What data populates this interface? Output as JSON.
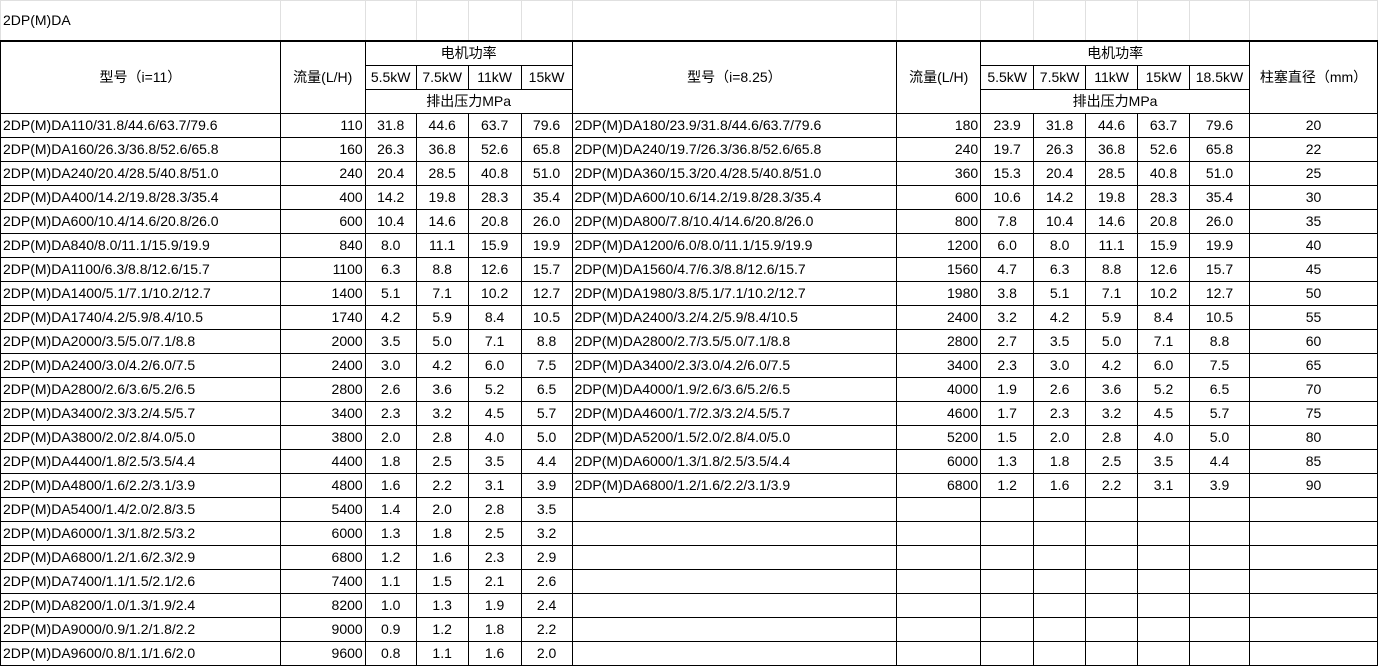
{
  "title": "2DP(M)DA",
  "left": {
    "model_header": "型号（i=11）",
    "flow_header": "流量(L/H)",
    "power_header": "电机功率",
    "pressure_header": "排出压力MPa",
    "powers": [
      "5.5kW",
      "7.5kW",
      "11kW",
      "15kW"
    ],
    "rows": [
      [
        "2DP(M)DA110/31.8/44.6/63.7/79.6",
        "110",
        "31.8",
        "44.6",
        "63.7",
        "79.6"
      ],
      [
        "2DP(M)DA160/26.3/36.8/52.6/65.8",
        "160",
        "26.3",
        "36.8",
        "52.6",
        "65.8"
      ],
      [
        "2DP(M)DA240/20.4/28.5/40.8/51.0",
        "240",
        "20.4",
        "28.5",
        "40.8",
        "51.0"
      ],
      [
        "2DP(M)DA400/14.2/19.8/28.3/35.4",
        "400",
        "14.2",
        "19.8",
        "28.3",
        "35.4"
      ],
      [
        "2DP(M)DA600/10.4/14.6/20.8/26.0",
        "600",
        "10.4",
        "14.6",
        "20.8",
        "26.0"
      ],
      [
        "2DP(M)DA840/8.0/11.1/15.9/19.9",
        "840",
        "8.0",
        "11.1",
        "15.9",
        "19.9"
      ],
      [
        "2DP(M)DA1100/6.3/8.8/12.6/15.7",
        "1100",
        "6.3",
        "8.8",
        "12.6",
        "15.7"
      ],
      [
        "2DP(M)DA1400/5.1/7.1/10.2/12.7",
        "1400",
        "5.1",
        "7.1",
        "10.2",
        "12.7"
      ],
      [
        "2DP(M)DA1740/4.2/5.9/8.4/10.5",
        "1740",
        "4.2",
        "5.9",
        "8.4",
        "10.5"
      ],
      [
        "2DP(M)DA2000/3.5/5.0/7.1/8.8",
        "2000",
        "3.5",
        "5.0",
        "7.1",
        "8.8"
      ],
      [
        "2DP(M)DA2400/3.0/4.2/6.0/7.5",
        "2400",
        "3.0",
        "4.2",
        "6.0",
        "7.5"
      ],
      [
        "2DP(M)DA2800/2.6/3.6/5.2/6.5",
        "2800",
        "2.6",
        "3.6",
        "5.2",
        "6.5"
      ],
      [
        "2DP(M)DA3400/2.3/3.2/4.5/5.7",
        "3400",
        "2.3",
        "3.2",
        "4.5",
        "5.7"
      ],
      [
        "2DP(M)DA3800/2.0/2.8/4.0/5.0",
        "3800",
        "2.0",
        "2.8",
        "4.0",
        "5.0"
      ],
      [
        "2DP(M)DA4400/1.8/2.5/3.5/4.4",
        "4400",
        "1.8",
        "2.5",
        "3.5",
        "4.4"
      ],
      [
        "2DP(M)DA4800/1.6/2.2/3.1/3.9",
        "4800",
        "1.6",
        "2.2",
        "3.1",
        "3.9"
      ],
      [
        "2DP(M)DA5400/1.4/2.0/2.8/3.5",
        "5400",
        "1.4",
        "2.0",
        "2.8",
        "3.5"
      ],
      [
        "2DP(M)DA6000/1.3/1.8/2.5/3.2",
        "6000",
        "1.3",
        "1.8",
        "2.5",
        "3.2"
      ],
      [
        "2DP(M)DA6800/1.2/1.6/2.3/2.9",
        "6800",
        "1.2",
        "1.6",
        "2.3",
        "2.9"
      ],
      [
        "2DP(M)DA7400/1.1/1.5/2.1/2.6",
        "7400",
        "1.1",
        "1.5",
        "2.1",
        "2.6"
      ],
      [
        "2DP(M)DA8200/1.0/1.3/1.9/2.4",
        "8200",
        "1.0",
        "1.3",
        "1.9",
        "2.4"
      ],
      [
        "2DP(M)DA9000/0.9/1.2/1.8/2.2",
        "9000",
        "0.9",
        "1.2",
        "1.8",
        "2.2"
      ],
      [
        "2DP(M)DA9600/0.8/1.1/1.6/2.0",
        "9600",
        "0.8",
        "1.1",
        "1.6",
        "2.0"
      ]
    ]
  },
  "right": {
    "model_header": "型号（i=8.25）",
    "flow_header": "流量(L/H)",
    "power_header": "电机功率",
    "pressure_header": "排出压力MPa",
    "plunger_header": "柱塞直径（mm）",
    "powers": [
      "5.5kW",
      "7.5kW",
      "11kW",
      "15kW",
      "18.5kW"
    ],
    "rows": [
      [
        "2DP(M)DA180/23.9/31.8/44.6/63.7/79.6",
        "180",
        "23.9",
        "31.8",
        "44.6",
        "63.7",
        "79.6",
        "20"
      ],
      [
        "2DP(M)DA240/19.7/26.3/36.8/52.6/65.8",
        "240",
        "19.7",
        "26.3",
        "36.8",
        "52.6",
        "65.8",
        "22"
      ],
      [
        "2DP(M)DA360/15.3/20.4/28.5/40.8/51.0",
        "360",
        "15.3",
        "20.4",
        "28.5",
        "40.8",
        "51.0",
        "25"
      ],
      [
        "2DP(M)DA600/10.6/14.2/19.8/28.3/35.4",
        "600",
        "10.6",
        "14.2",
        "19.8",
        "28.3",
        "35.4",
        "30"
      ],
      [
        "2DP(M)DA800/7.8/10.4/14.6/20.8/26.0",
        "800",
        "7.8",
        "10.4",
        "14.6",
        "20.8",
        "26.0",
        "35"
      ],
      [
        "2DP(M)DA1200/6.0/8.0/11.1/15.9/19.9",
        "1200",
        "6.0",
        "8.0",
        "11.1",
        "15.9",
        "19.9",
        "40"
      ],
      [
        "2DP(M)DA1560/4.7/6.3/8.8/12.6/15.7",
        "1560",
        "4.7",
        "6.3",
        "8.8",
        "12.6",
        "15.7",
        "45"
      ],
      [
        "2DP(M)DA1980/3.8/5.1/7.1/10.2/12.7",
        "1980",
        "3.8",
        "5.1",
        "7.1",
        "10.2",
        "12.7",
        "50"
      ],
      [
        "2DP(M)DA2400/3.2/4.2/5.9/8.4/10.5",
        "2400",
        "3.2",
        "4.2",
        "5.9",
        "8.4",
        "10.5",
        "55"
      ],
      [
        "2DP(M)DA2800/2.7/3.5/5.0/7.1/8.8",
        "2800",
        "2.7",
        "3.5",
        "5.0",
        "7.1",
        "8.8",
        "60"
      ],
      [
        "2DP(M)DA3400/2.3/3.0/4.2/6.0/7.5",
        "3400",
        "2.3",
        "3.0",
        "4.2",
        "6.0",
        "7.5",
        "65"
      ],
      [
        "2DP(M)DA4000/1.9/2.6/3.6/5.2/6.5",
        "4000",
        "1.9",
        "2.6",
        "3.6",
        "5.2",
        "6.5",
        "70"
      ],
      [
        "2DP(M)DA4600/1.7/2.3/3.2/4.5/5.7",
        "4600",
        "1.7",
        "2.3",
        "3.2",
        "4.5",
        "5.7",
        "75"
      ],
      [
        "2DP(M)DA5200/1.5/2.0/2.8/4.0/5.0",
        "5200",
        "1.5",
        "2.0",
        "2.8",
        "4.0",
        "5.0",
        "80"
      ],
      [
        "2DP(M)DA6000/1.3/1.8/2.5/3.5/4.4",
        "6000",
        "1.3",
        "1.8",
        "2.5",
        "3.5",
        "4.4",
        "85"
      ],
      [
        "2DP(M)DA6800/1.2/1.6/2.2/3.1/3.9",
        "6800",
        "1.2",
        "1.6",
        "2.2",
        "3.1",
        "3.9",
        "90"
      ]
    ]
  }
}
